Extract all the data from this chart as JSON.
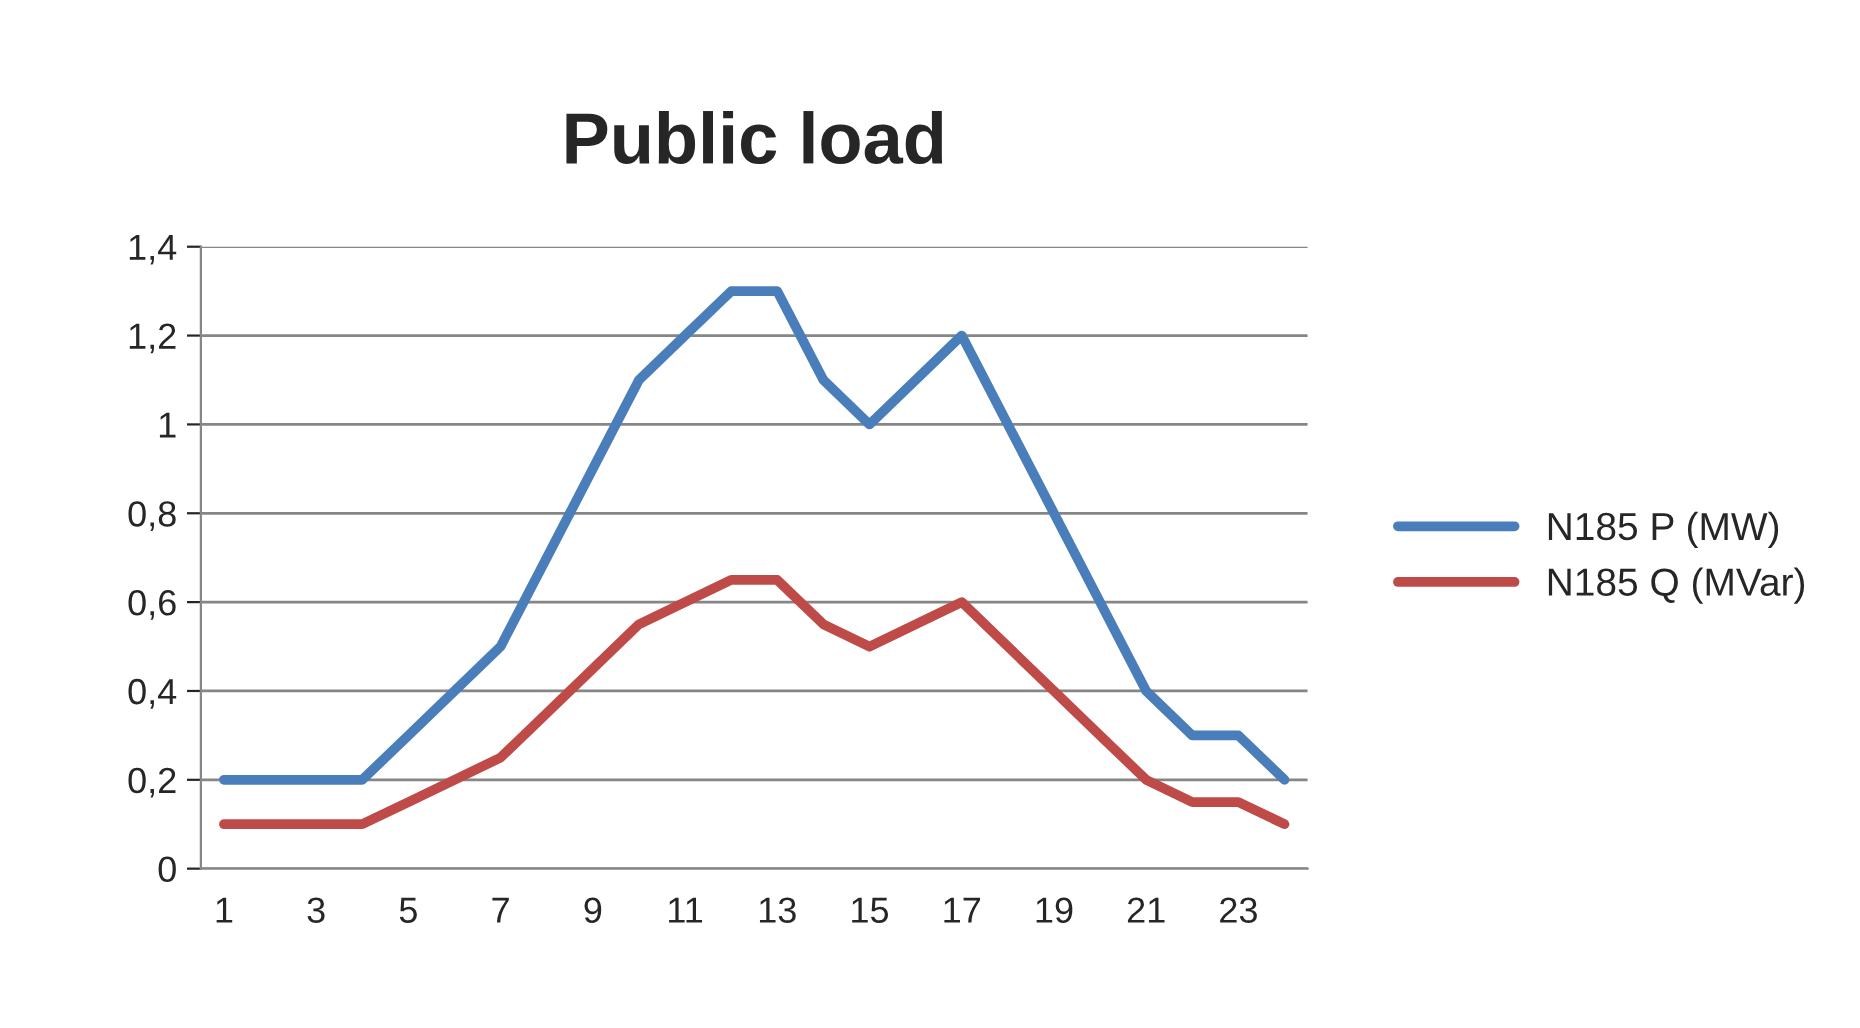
{
  "chart_data": {
    "type": "line",
    "title": "Public load",
    "categories": [
      "1",
      null,
      "3",
      null,
      "5",
      null,
      "7",
      null,
      "9",
      null,
      "11",
      null,
      "13",
      null,
      "15",
      null,
      "17",
      null,
      "19",
      null,
      "21",
      null,
      "23",
      null
    ],
    "series": [
      {
        "name": "N185 P (MW)",
        "color": "#4a7ebb",
        "values": [
          0.2,
          0.2,
          0.2,
          0.2,
          0.3,
          0.4,
          0.5,
          0.7,
          0.9,
          1.1,
          1.2,
          1.3,
          1.3,
          1.1,
          1.0,
          1.1,
          1.2,
          1.0,
          0.8,
          0.6,
          0.4,
          0.3,
          0.3,
          0.2
        ]
      },
      {
        "name": "N185 Q (MVar)",
        "color": "#be4b48",
        "values": [
          0.1,
          0.1,
          0.1,
          0.1,
          0.15,
          0.2,
          0.25,
          0.35,
          0.45,
          0.55,
          0.6,
          0.65,
          0.65,
          0.55,
          0.5,
          0.55,
          0.6,
          0.5,
          0.4,
          0.3,
          0.2,
          0.15,
          0.15,
          0.1
        ]
      }
    ],
    "ylim": [
      0,
      1.4
    ],
    "yticks": [
      0,
      {
        "value": 0.2,
        "label": "0,2"
      },
      {
        "value": 0.4,
        "label": "0,4"
      },
      {
        "value": 0.6,
        "label": "0,6"
      },
      {
        "value": 0.8,
        "label": "0,8"
      },
      1,
      {
        "value": 1.2,
        "label": "1,2"
      },
      {
        "value": 1.4,
        "label": "1,4"
      }
    ],
    "grid": "y",
    "legend": "right",
    "marker": "none",
    "line_style": "solid"
  }
}
